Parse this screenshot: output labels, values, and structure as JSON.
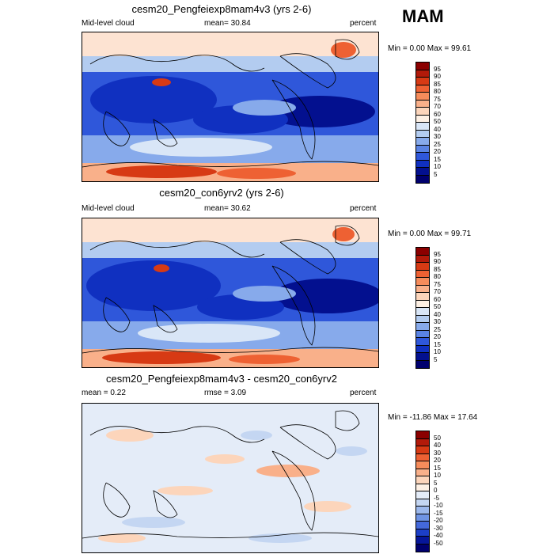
{
  "season": "MAM",
  "panels": [
    {
      "title": "cesm20_Pengfeiexp8mam4v3 (yrs 2-6)",
      "left_label": "Mid-level cloud",
      "mean_label": "mean=  30.84",
      "units": "percent",
      "minmax": "Min =  0.00 Max =  99.61",
      "legend_labels": [
        "95",
        "90",
        "85",
        "80",
        "75",
        "70",
        "60",
        "50",
        "40",
        "30",
        "25",
        "20",
        "15",
        "10",
        "5"
      ],
      "legend_colors": [
        "#8b0000",
        "#b21a0a",
        "#d73a14",
        "#ee6133",
        "#f68c5b",
        "#f9b08a",
        "#fcd5bb",
        "#fdf0e4",
        "#d9e6f7",
        "#b3ccf0",
        "#87aaeb",
        "#5a83e3",
        "#2f57da",
        "#1030c0",
        "#03108f",
        "#00006e"
      ]
    },
    {
      "title": "cesm20_con6yrv2 (yrs 2-6)",
      "left_label": "Mid-level cloud",
      "mean_label": "mean=  30.62",
      "units": "percent",
      "minmax": "Min =  0.00 Max =  99.71",
      "legend_labels": [
        "95",
        "90",
        "85",
        "80",
        "75",
        "70",
        "60",
        "50",
        "40",
        "30",
        "25",
        "20",
        "15",
        "10",
        "5"
      ],
      "legend_colors": [
        "#8b0000",
        "#b21a0a",
        "#d73a14",
        "#ee6133",
        "#f68c5b",
        "#f9b08a",
        "#fcd5bb",
        "#fdf0e4",
        "#d9e6f7",
        "#b3ccf0",
        "#87aaeb",
        "#5a83e3",
        "#2f57da",
        "#1030c0",
        "#03108f",
        "#00006e"
      ]
    },
    {
      "title": "cesm20_Pengfeiexp8mam4v3 - cesm20_con6yrv2",
      "left_label": "mean =   0.22",
      "mean_label": "rmse =   3.09",
      "units": "percent",
      "minmax": "Min = -11.86 Max =  17.64",
      "legend_labels": [
        "50",
        "40",
        "30",
        "20",
        "15",
        "10",
        "5",
        "0",
        "-5",
        "-10",
        "-15",
        "-20",
        "-30",
        "-40",
        "-50"
      ],
      "legend_colors": [
        "#8b0000",
        "#b21a0a",
        "#d73a14",
        "#ee6133",
        "#f68c5b",
        "#f9b08a",
        "#fcd5bb",
        "#fdf0e4",
        "#e4ecf8",
        "#c4d6f2",
        "#9cb8ec",
        "#6f94e4",
        "#4469db",
        "#1c3fc8",
        "#06169a",
        "#00006e"
      ]
    }
  ]
}
